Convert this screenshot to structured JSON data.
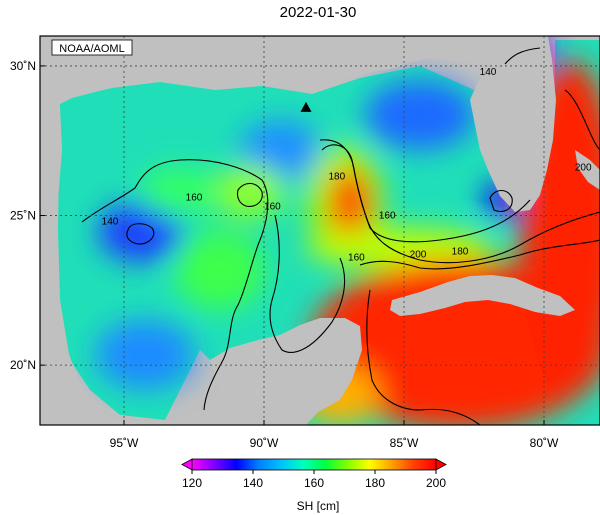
{
  "title": "2022-01-30",
  "credit": "NOAA/AOML",
  "map": {
    "lon_range": [
      -98,
      -78
    ],
    "lat_range": [
      18,
      31
    ],
    "lon_ticks": [
      {
        "value": -95,
        "label": "95˚W"
      },
      {
        "value": -90,
        "label": "90˚W"
      },
      {
        "value": -85,
        "label": "85˚W"
      },
      {
        "value": -80,
        "label": "80˚W"
      }
    ],
    "lat_ticks": [
      {
        "value": 30,
        "label": "30˚N"
      },
      {
        "value": 25,
        "label": "25˚N"
      },
      {
        "value": 20,
        "label": "20˚N"
      }
    ],
    "grid": true,
    "marker": {
      "name": "triangle",
      "lon": -88.5,
      "lat": 28.6
    },
    "land_color": "#c0c0c0",
    "contour_labels": [
      {
        "text": "140",
        "lon": -95.5,
        "lat": 24.7
      },
      {
        "text": "160",
        "lon": -92.5,
        "lat": 25.5
      },
      {
        "text": "160",
        "lon": -89.7,
        "lat": 25.2
      },
      {
        "text": "160",
        "lon": -86.7,
        "lat": 23.5
      },
      {
        "text": "160",
        "lon": -85.6,
        "lat": 24.9
      },
      {
        "text": "180",
        "lon": -87.4,
        "lat": 26.2
      },
      {
        "text": "180",
        "lon": -83.0,
        "lat": 23.7
      },
      {
        "text": "200",
        "lon": -84.5,
        "lat": 23.6
      },
      {
        "text": "140",
        "lon": -82.0,
        "lat": 29.7
      },
      {
        "text": "200",
        "lon": -78.6,
        "lat": 26.5
      }
    ]
  },
  "colorbar": {
    "label": "SH [cm]",
    "min": 120,
    "max": 200,
    "ticks": [
      "120",
      "140",
      "160",
      "180",
      "200"
    ],
    "stops": [
      "#ff00ff",
      "#8000ff",
      "#0000ff",
      "#0080ff",
      "#00c0ff",
      "#00ffc0",
      "#00ff40",
      "#80ff00",
      "#ffff00",
      "#ffa000",
      "#ff4000",
      "#ff0000"
    ]
  }
}
